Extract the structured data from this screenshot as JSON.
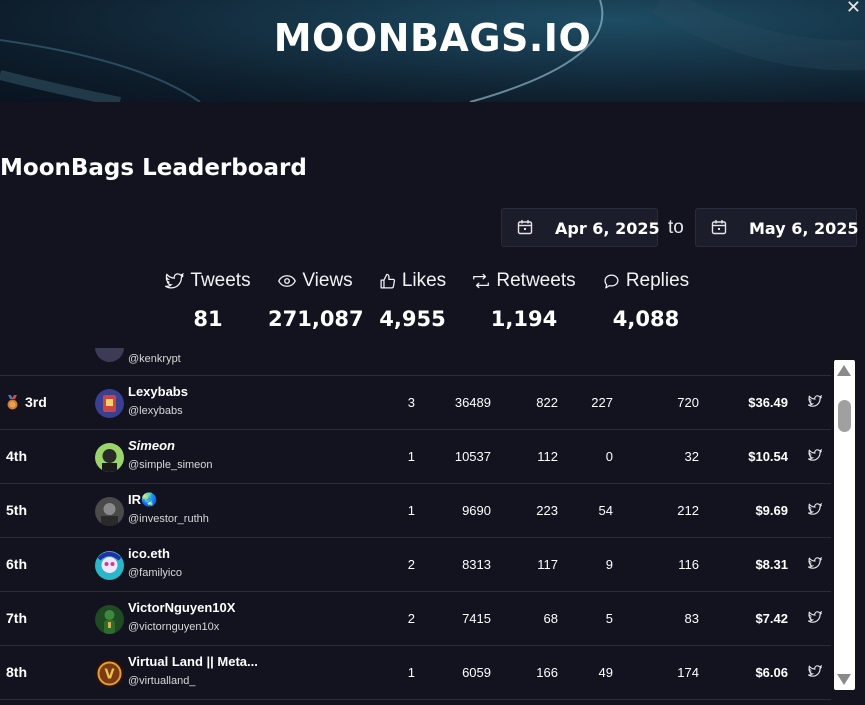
{
  "banner": {
    "title": "MOONBAGS.IO",
    "close": "✕"
  },
  "leaderboard_title": "MoonBags Leaderboard",
  "date_range": {
    "from": "Apr 6, 2025",
    "separator": "to",
    "to": "May 6, 2025"
  },
  "stats": [
    {
      "label": "Tweets",
      "value": "81",
      "icon": "twitter-bird-icon"
    },
    {
      "label": "Views",
      "value": "271,087",
      "icon": "eye-icon"
    },
    {
      "label": "Likes",
      "value": "4,955",
      "icon": "thumbs-up-icon"
    },
    {
      "label": "Retweets",
      "value": "1,194",
      "icon": "retweet-icon"
    },
    {
      "label": "Replies",
      "value": "4,088",
      "icon": "speech-bubble-icon"
    }
  ],
  "partial_row": {
    "handle": "@kenkrypt"
  },
  "rows": [
    {
      "rank": "3rd",
      "medal": "bronze",
      "name": "Lexybabs",
      "handle": "@lexybabs",
      "tweets": "3",
      "views": "36489",
      "likes": "822",
      "retweets": "227",
      "replies": "720",
      "earnings": "$36.49",
      "avatar_color": "#3a3f8f"
    },
    {
      "rank": "4th",
      "name": "Simeon",
      "handle": "@simple_simeon",
      "tweets": "1",
      "views": "10537",
      "likes": "112",
      "retweets": "0",
      "replies": "32",
      "earnings": "$10.54",
      "avatar_color": "#5c8f2e"
    },
    {
      "rank": "5th",
      "name": "IR🌏",
      "handle": "@investor_ruthh",
      "tweets": "1",
      "views": "9690",
      "likes": "223",
      "retweets": "54",
      "replies": "212",
      "earnings": "$9.69",
      "avatar_color": "#5a5a5a"
    },
    {
      "rank": "6th",
      "name": "ico.eth",
      "handle": "@familyico",
      "tweets": "2",
      "views": "8313",
      "likes": "117",
      "retweets": "9",
      "replies": "116",
      "earnings": "$8.31",
      "avatar_color": "#29b8c9"
    },
    {
      "rank": "7th",
      "name": "VictorNguyen10X",
      "handle": "@victornguyen10x",
      "tweets": "2",
      "views": "7415",
      "likes": "68",
      "retweets": "5",
      "replies": "83",
      "earnings": "$7.42",
      "avatar_color": "#2f6b2f"
    },
    {
      "rank": "8th",
      "name": "Virtual Land || Meta...",
      "handle": "@virtualland_",
      "tweets": "1",
      "views": "6059",
      "likes": "166",
      "retweets": "49",
      "replies": "174",
      "earnings": "$6.06",
      "avatar_color": "#7a3b12"
    }
  ]
}
